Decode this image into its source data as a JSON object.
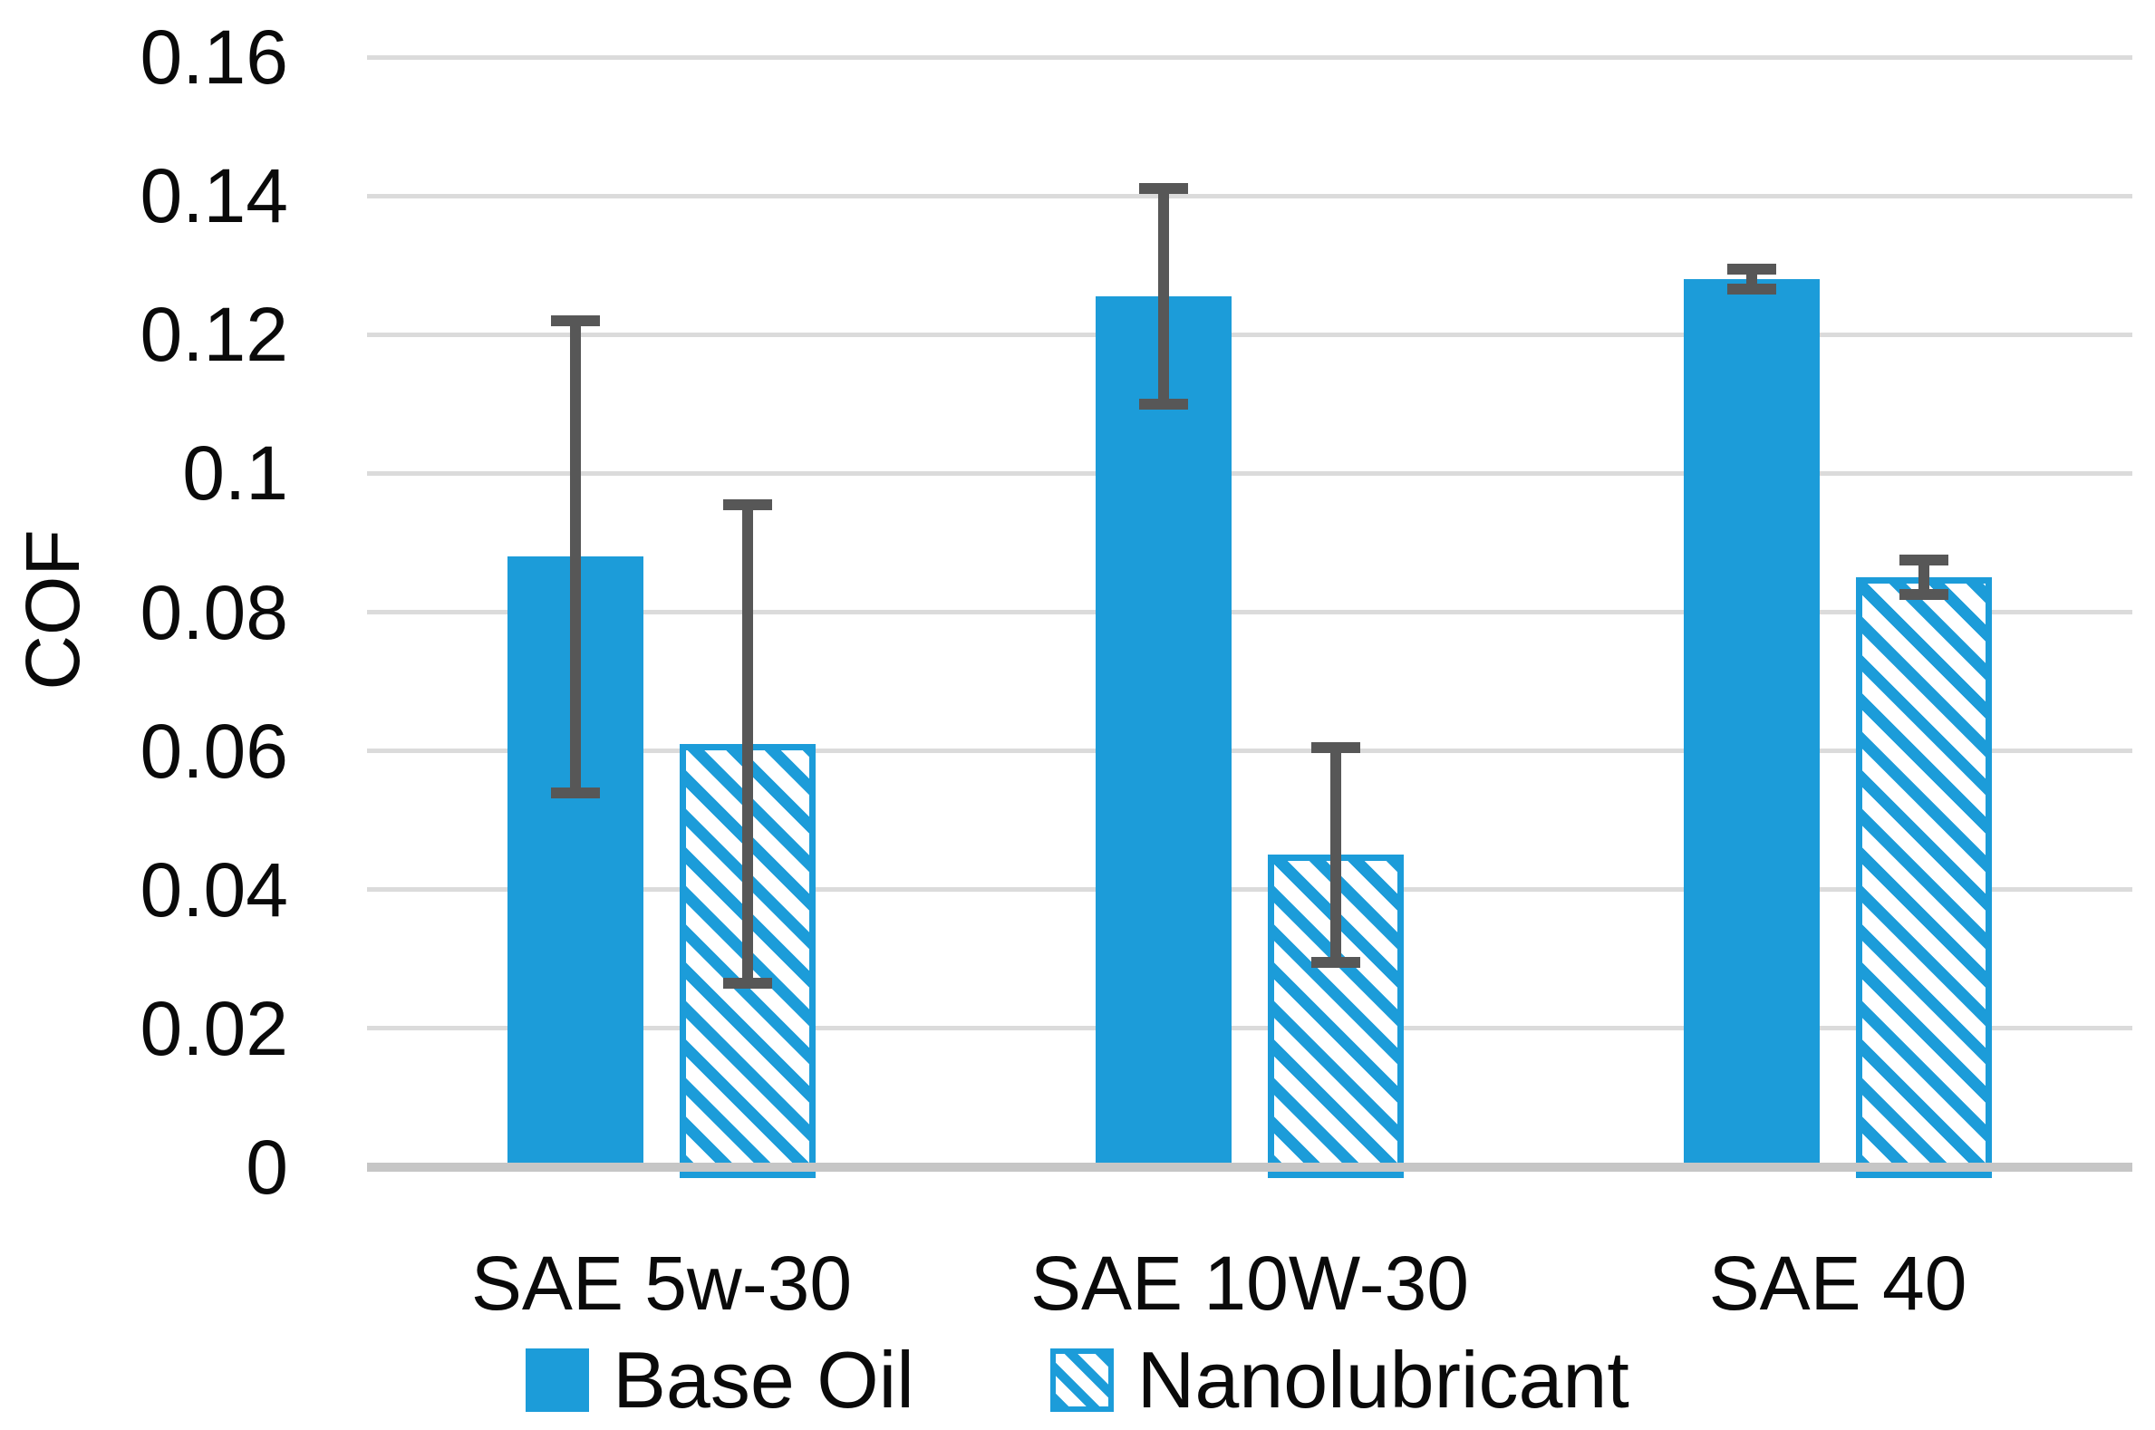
{
  "chart_data": {
    "type": "bar",
    "title": "",
    "xlabel": "",
    "ylabel": "COF",
    "categories": [
      "SAE 5w-30",
      "SAE 10W-30",
      "SAE 40"
    ],
    "series": [
      {
        "name": "Base Oil",
        "pattern": "solid",
        "values": [
          0.088,
          0.1255,
          0.128
        ],
        "error_bars": [
          0.034,
          0.0155,
          0.0015
        ]
      },
      {
        "name": "Nanolubricant",
        "pattern": "diagonal-hatch",
        "values": [
          0.061,
          0.045,
          0.085
        ],
        "error_bars": [
          0.0345,
          0.0155,
          0.0025
        ]
      }
    ],
    "y_axis": {
      "min": 0,
      "max": 0.16,
      "tick_step": 0.02,
      "tick_labels": [
        "0",
        "0.02",
        "0.04",
        "0.06",
        "0.08",
        "0.1",
        "0.12",
        "0.14",
        "0.16"
      ]
    },
    "grid": true,
    "legend_position": "bottom",
    "colors": {
      "bar_blue": "#1c9cd9",
      "error_bar_gray": "#575757",
      "gridline_gray": "#dbdbdb",
      "axis_line_gray": "#c6c6c6",
      "text_black": "#0a0a0a"
    }
  }
}
